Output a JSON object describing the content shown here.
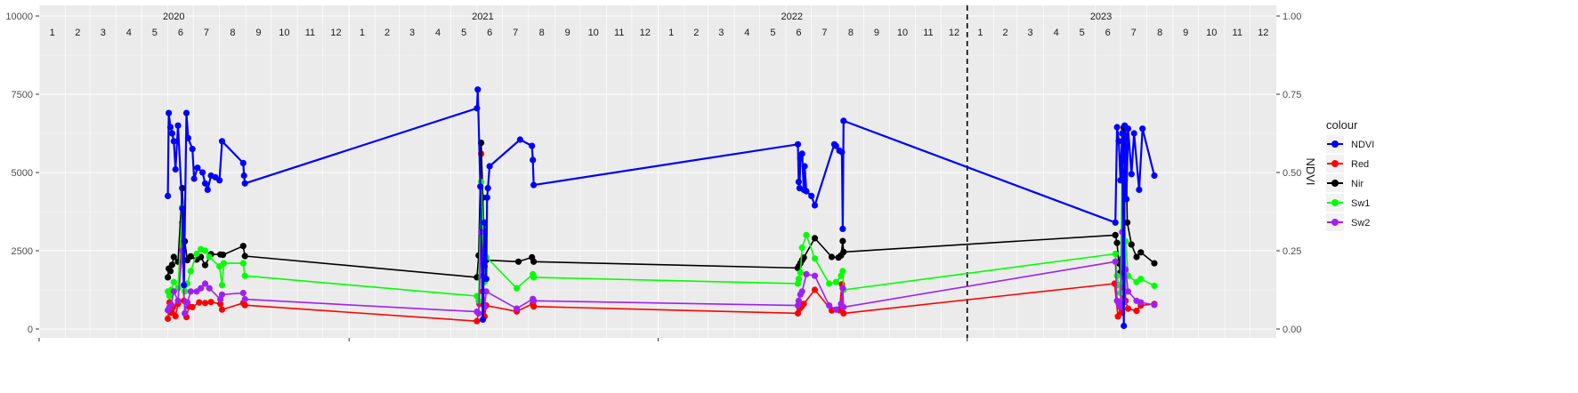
{
  "chart_data": {
    "type": "line",
    "x_scale": "date",
    "x_range": [
      "2020-01-01",
      "2023-12-31"
    ],
    "y_left": {
      "range": [
        0,
        10000
      ],
      "ticks": [
        0,
        2500,
        5000,
        7500,
        10000
      ]
    },
    "y_right": {
      "label": "NDVI",
      "range": [
        0,
        1
      ],
      "ticks": [
        "0.00",
        "0.25",
        "0.50",
        "0.75",
        "1.00"
      ]
    },
    "years": [
      "2020",
      "2021",
      "2022",
      "2023"
    ],
    "months": [
      "1",
      "2",
      "3",
      "4",
      "5",
      "6",
      "7",
      "8",
      "9",
      "10",
      "11",
      "12"
    ],
    "reference_line": {
      "x": "2023-01-01",
      "style": "dashed"
    },
    "legend": {
      "title": "colour",
      "position": "right"
    },
    "series": [
      {
        "name": "NDVI",
        "color": "#0000ff",
        "axis": "right",
        "points": [
          [
            "2020-06-01",
            0.425
          ],
          [
            "2020-06-02",
            0.69
          ],
          [
            "2020-06-04",
            0.645
          ],
          [
            "2020-06-06",
            0.625
          ],
          [
            "2020-06-08",
            0.6
          ],
          [
            "2020-06-10",
            0.51
          ],
          [
            "2020-06-13",
            0.65
          ],
          [
            "2020-06-18",
            0.385
          ],
          [
            "2020-06-20",
            0.14
          ],
          [
            "2020-06-23",
            0.69
          ],
          [
            "2020-06-25",
            0.61
          ],
          [
            "2020-06-30",
            0.575
          ],
          [
            "2020-07-02",
            0.48
          ],
          [
            "2020-07-06",
            0.515
          ],
          [
            "2020-07-12",
            0.5
          ],
          [
            "2020-07-15",
            0.465
          ],
          [
            "2020-07-18",
            0.445
          ],
          [
            "2020-07-22",
            0.49
          ],
          [
            "2020-07-27",
            0.485
          ],
          [
            "2020-08-01",
            0.475
          ],
          [
            "2020-08-04",
            0.6
          ],
          [
            "2020-08-29",
            0.53
          ],
          [
            "2020-08-30",
            0.49
          ],
          [
            "2020-08-31",
            0.465
          ],
          [
            "2021-06-01",
            0.705
          ],
          [
            "2021-06-02",
            0.765
          ],
          [
            "2021-06-05",
            0.455
          ],
          [
            "2021-06-08",
            0.03
          ],
          [
            "2021-06-10",
            0.34
          ],
          [
            "2021-06-12",
            0.16
          ],
          [
            "2021-06-13",
            0.42
          ],
          [
            "2021-06-14",
            0.45
          ],
          [
            "2021-06-16",
            0.52
          ],
          [
            "2021-07-22",
            0.605
          ],
          [
            "2021-08-05",
            0.585
          ],
          [
            "2021-08-06",
            0.54
          ],
          [
            "2021-08-07",
            0.46
          ],
          [
            "2022-06-15",
            0.59
          ],
          [
            "2022-06-16",
            0.47
          ],
          [
            "2022-06-17",
            0.45
          ],
          [
            "2022-06-18",
            0.545
          ],
          [
            "2022-06-20",
            0.56
          ],
          [
            "2022-06-22",
            0.445
          ],
          [
            "2022-06-23",
            0.52
          ],
          [
            "2022-06-25",
            0.44
          ],
          [
            "2022-07-01",
            0.425
          ],
          [
            "2022-07-05",
            0.395
          ],
          [
            "2022-07-28",
            0.59
          ],
          [
            "2022-07-30",
            0.585
          ],
          [
            "2022-08-03",
            0.57
          ],
          [
            "2022-08-06",
            0.565
          ],
          [
            "2022-08-07",
            0.32
          ],
          [
            "2022-08-08",
            0.665
          ],
          [
            "2023-06-25",
            0.34
          ],
          [
            "2023-06-27",
            0.645
          ],
          [
            "2023-06-29",
            0.6
          ],
          [
            "2023-07-01",
            0.475
          ],
          [
            "2023-07-03",
            0.625
          ],
          [
            "2023-07-05",
            0.01
          ],
          [
            "2023-07-06",
            0.65
          ],
          [
            "2023-07-07",
            0.62
          ],
          [
            "2023-07-08",
            0.415
          ],
          [
            "2023-07-10",
            0.64
          ],
          [
            "2023-07-14",
            0.495
          ],
          [
            "2023-07-17",
            0.625
          ],
          [
            "2023-07-23",
            0.445
          ],
          [
            "2023-07-27",
            0.64
          ],
          [
            "2023-08-10",
            0.49
          ]
        ]
      },
      {
        "name": "Red",
        "color": "#ff0000",
        "axis": "left",
        "points": [
          [
            "2020-06-01",
            330
          ],
          [
            "2020-06-03",
            850
          ],
          [
            "2020-06-05",
            520
          ],
          [
            "2020-06-07",
            700
          ],
          [
            "2020-06-10",
            410
          ],
          [
            "2020-06-13",
            800
          ],
          [
            "2020-06-18",
            3400
          ],
          [
            "2020-06-20",
            900
          ],
          [
            "2020-06-23",
            380
          ],
          [
            "2020-06-26",
            720
          ],
          [
            "2020-06-30",
            700
          ],
          [
            "2020-07-08",
            850
          ],
          [
            "2020-07-15",
            830
          ],
          [
            "2020-07-22",
            860
          ],
          [
            "2020-08-02",
            800
          ],
          [
            "2020-08-04",
            620
          ],
          [
            "2020-08-29",
            830
          ],
          [
            "2020-08-31",
            760
          ],
          [
            "2021-06-01",
            250
          ],
          [
            "2021-06-04",
            800
          ],
          [
            "2021-06-06",
            5600
          ],
          [
            "2021-06-08",
            1200
          ],
          [
            "2021-06-10",
            400
          ],
          [
            "2021-06-12",
            750
          ],
          [
            "2021-07-18",
            560
          ],
          [
            "2021-08-06",
            810
          ],
          [
            "2021-08-07",
            720
          ],
          [
            "2022-06-15",
            500
          ],
          [
            "2022-06-17",
            650
          ],
          [
            "2022-06-19",
            700
          ],
          [
            "2022-06-22",
            800
          ],
          [
            "2022-07-05",
            1250
          ],
          [
            "2022-07-25",
            590
          ],
          [
            "2022-08-03",
            600
          ],
          [
            "2022-08-06",
            1430
          ],
          [
            "2022-08-08",
            500
          ],
          [
            "2023-06-24",
            1450
          ],
          [
            "2023-06-28",
            400
          ],
          [
            "2023-07-01",
            700
          ],
          [
            "2023-07-03",
            520
          ],
          [
            "2023-07-05",
            6400
          ],
          [
            "2023-07-07",
            900
          ],
          [
            "2023-07-10",
            650
          ],
          [
            "2023-07-20",
            580
          ],
          [
            "2023-07-25",
            750
          ],
          [
            "2023-08-10",
            800
          ]
        ]
      },
      {
        "name": "Nir",
        "color": "#000000",
        "axis": "left",
        "points": [
          [
            "2020-06-01",
            1650
          ],
          [
            "2020-06-02",
            1930
          ],
          [
            "2020-06-04",
            1850
          ],
          [
            "2020-06-06",
            2050
          ],
          [
            "2020-06-08",
            2300
          ],
          [
            "2020-06-13",
            2150
          ],
          [
            "2020-06-18",
            4500
          ],
          [
            "2020-06-21",
            2800
          ],
          [
            "2020-06-24",
            2200
          ],
          [
            "2020-06-28",
            2320
          ],
          [
            "2020-07-05",
            2220
          ],
          [
            "2020-07-10",
            2300
          ],
          [
            "2020-07-15",
            2040
          ],
          [
            "2020-07-22",
            2390
          ],
          [
            "2020-08-02",
            2380
          ],
          [
            "2020-08-05",
            2370
          ],
          [
            "2020-08-29",
            2650
          ],
          [
            "2020-08-31",
            2330
          ],
          [
            "2021-06-01",
            1650
          ],
          [
            "2021-06-03",
            2350
          ],
          [
            "2021-06-06",
            5950
          ],
          [
            "2021-06-08",
            4200
          ],
          [
            "2021-06-10",
            2000
          ],
          [
            "2021-06-12",
            2200
          ],
          [
            "2021-07-20",
            2150
          ],
          [
            "2021-08-05",
            2290
          ],
          [
            "2021-08-07",
            2150
          ],
          [
            "2022-06-15",
            1950
          ],
          [
            "2022-06-16",
            2000
          ],
          [
            "2022-06-18",
            2100
          ],
          [
            "2022-06-20",
            2200
          ],
          [
            "2022-06-22",
            2280
          ],
          [
            "2022-07-05",
            2900
          ],
          [
            "2022-07-25",
            2300
          ],
          [
            "2022-08-02",
            2280
          ],
          [
            "2022-08-05",
            2350
          ],
          [
            "2022-08-07",
            2810
          ],
          [
            "2022-08-08",
            2460
          ],
          [
            "2023-06-25",
            3000
          ],
          [
            "2023-06-27",
            2750
          ],
          [
            "2023-06-29",
            2100
          ],
          [
            "2023-07-01",
            1800
          ],
          [
            "2023-07-03",
            2250
          ],
          [
            "2023-07-05",
            6450
          ],
          [
            "2023-07-07",
            6100
          ],
          [
            "2023-07-09",
            3400
          ],
          [
            "2023-07-14",
            2700
          ],
          [
            "2023-07-20",
            2300
          ],
          [
            "2023-07-25",
            2450
          ],
          [
            "2023-08-10",
            2100
          ]
        ]
      },
      {
        "name": "Sw1",
        "color": "#00ff00",
        "axis": "left",
        "points": [
          [
            "2020-06-01",
            1200
          ],
          [
            "2020-06-03",
            1050
          ],
          [
            "2020-06-05",
            1250
          ],
          [
            "2020-06-08",
            1500
          ],
          [
            "2020-06-13",
            1300
          ],
          [
            "2020-06-18",
            3900
          ],
          [
            "2020-06-21",
            1200
          ],
          [
            "2020-06-24",
            1450
          ],
          [
            "2020-06-28",
            1850
          ],
          [
            "2020-07-05",
            2400
          ],
          [
            "2020-07-10",
            2550
          ],
          [
            "2020-07-15",
            2500
          ],
          [
            "2020-07-20",
            2300
          ],
          [
            "2020-08-01",
            2000
          ],
          [
            "2020-08-04",
            1400
          ],
          [
            "2020-08-06",
            2100
          ],
          [
            "2020-08-29",
            2100
          ],
          [
            "2020-08-31",
            1700
          ],
          [
            "2021-06-01",
            1050
          ],
          [
            "2021-06-03",
            900
          ],
          [
            "2021-06-06",
            4700
          ],
          [
            "2021-06-08",
            3300
          ],
          [
            "2021-06-10",
            1500
          ],
          [
            "2021-06-12",
            2300
          ],
          [
            "2021-07-18",
            1300
          ],
          [
            "2021-08-06",
            1750
          ],
          [
            "2021-08-07",
            1650
          ],
          [
            "2022-06-15",
            1450
          ],
          [
            "2022-06-16",
            1600
          ],
          [
            "2022-06-18",
            1800
          ],
          [
            "2022-06-20",
            2600
          ],
          [
            "2022-06-25",
            3000
          ],
          [
            "2022-07-05",
            2250
          ],
          [
            "2022-07-22",
            1450
          ],
          [
            "2022-07-30",
            1500
          ],
          [
            "2022-08-05",
            1700
          ],
          [
            "2022-08-07",
            1850
          ],
          [
            "2022-08-08",
            1250
          ],
          [
            "2023-06-25",
            2400
          ],
          [
            "2023-06-27",
            1700
          ],
          [
            "2023-06-29",
            1400
          ],
          [
            "2023-07-01",
            1150
          ],
          [
            "2023-07-03",
            5200
          ],
          [
            "2023-07-05",
            1500
          ],
          [
            "2023-07-07",
            2800
          ],
          [
            "2023-07-10",
            1700
          ],
          [
            "2023-07-20",
            1500
          ],
          [
            "2023-07-25",
            1600
          ],
          [
            "2023-08-10",
            1380
          ]
        ]
      },
      {
        "name": "Sw2",
        "color": "#a020f0",
        "axis": "left",
        "points": [
          [
            "2020-06-01",
            600
          ],
          [
            "2020-06-03",
            700
          ],
          [
            "2020-06-05",
            780
          ],
          [
            "2020-06-08",
            1200
          ],
          [
            "2020-06-13",
            900
          ],
          [
            "2020-06-18",
            2500
          ],
          [
            "2020-06-21",
            500
          ],
          [
            "2020-06-24",
            850
          ],
          [
            "2020-06-28",
            1200
          ],
          [
            "2020-07-05",
            1200
          ],
          [
            "2020-07-10",
            1300
          ],
          [
            "2020-07-15",
            1450
          ],
          [
            "2020-07-20",
            1300
          ],
          [
            "2020-08-02",
            950
          ],
          [
            "2020-08-04",
            1100
          ],
          [
            "2020-08-29",
            1150
          ],
          [
            "2020-08-31",
            950
          ],
          [
            "2021-06-01",
            550
          ],
          [
            "2021-06-03",
            500
          ],
          [
            "2021-06-06",
            3100
          ],
          [
            "2021-06-08",
            1700
          ],
          [
            "2021-06-10",
            700
          ],
          [
            "2021-06-12",
            1200
          ],
          [
            "2021-07-18",
            650
          ],
          [
            "2021-08-06",
            960
          ],
          [
            "2021-08-07",
            900
          ],
          [
            "2022-06-15",
            750
          ],
          [
            "2022-06-16",
            900
          ],
          [
            "2022-06-18",
            1100
          ],
          [
            "2022-06-20",
            1200
          ],
          [
            "2022-06-25",
            1750
          ],
          [
            "2022-07-05",
            1700
          ],
          [
            "2022-07-22",
            750
          ],
          [
            "2022-07-30",
            620
          ],
          [
            "2022-08-05",
            800
          ],
          [
            "2022-08-07",
            1300
          ],
          [
            "2022-08-08",
            700
          ],
          [
            "2023-06-25",
            2150
          ],
          [
            "2023-06-27",
            900
          ],
          [
            "2023-06-29",
            800
          ],
          [
            "2023-07-01",
            700
          ],
          [
            "2023-07-03",
            3100
          ],
          [
            "2023-07-05",
            850
          ],
          [
            "2023-07-07",
            1900
          ],
          [
            "2023-07-10",
            1200
          ],
          [
            "2023-07-20",
            900
          ],
          [
            "2023-07-25",
            850
          ],
          [
            "2023-08-10",
            770
          ]
        ]
      }
    ]
  }
}
